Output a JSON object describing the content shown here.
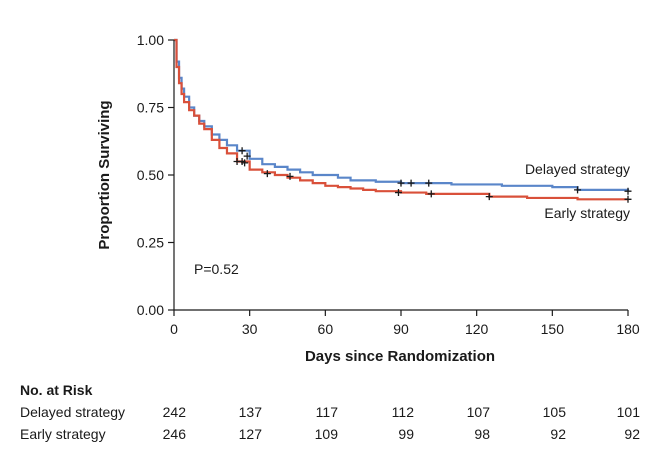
{
  "chart_data": {
    "type": "line",
    "subtype": "kaplan-meier",
    "xlabel": "Days since Randomization",
    "ylabel": "Proportion Surviving",
    "xlim": [
      0,
      180
    ],
    "ylim": [
      0,
      1
    ],
    "xticks": [
      0,
      30,
      60,
      90,
      120,
      150,
      180
    ],
    "yticks": [
      "0.00",
      "0.25",
      "0.50",
      "0.75",
      "1.00"
    ],
    "annotation": "P=0.52",
    "series": [
      {
        "name": "Delayed strategy",
        "color": "#5a86c9",
        "points": [
          [
            0,
            1.0
          ],
          [
            1,
            0.92
          ],
          [
            2,
            0.86
          ],
          [
            3,
            0.82
          ],
          [
            4,
            0.79
          ],
          [
            6,
            0.75
          ],
          [
            8,
            0.72
          ],
          [
            10,
            0.7
          ],
          [
            12,
            0.68
          ],
          [
            15,
            0.65
          ],
          [
            18,
            0.63
          ],
          [
            21,
            0.61
          ],
          [
            25,
            0.59
          ],
          [
            30,
            0.56
          ],
          [
            35,
            0.54
          ],
          [
            40,
            0.53
          ],
          [
            45,
            0.52
          ],
          [
            50,
            0.51
          ],
          [
            55,
            0.5
          ],
          [
            60,
            0.5
          ],
          [
            65,
            0.49
          ],
          [
            70,
            0.48
          ],
          [
            75,
            0.48
          ],
          [
            80,
            0.475
          ],
          [
            90,
            0.47
          ],
          [
            100,
            0.47
          ],
          [
            110,
            0.465
          ],
          [
            130,
            0.46
          ],
          [
            150,
            0.455
          ],
          [
            160,
            0.445
          ],
          [
            180,
            0.44
          ]
        ],
        "censored": [
          [
            27,
            0.59
          ],
          [
            29,
            0.57
          ],
          [
            90,
            0.47
          ],
          [
            94,
            0.47
          ],
          [
            101,
            0.47
          ],
          [
            160,
            0.445
          ],
          [
            180,
            0.44
          ]
        ]
      },
      {
        "name": "Early strategy",
        "color": "#d9503a",
        "points": [
          [
            0,
            1.0
          ],
          [
            1,
            0.9
          ],
          [
            2,
            0.84
          ],
          [
            3,
            0.8
          ],
          [
            4,
            0.77
          ],
          [
            6,
            0.74
          ],
          [
            8,
            0.72
          ],
          [
            10,
            0.69
          ],
          [
            12,
            0.67
          ],
          [
            15,
            0.63
          ],
          [
            18,
            0.6
          ],
          [
            21,
            0.58
          ],
          [
            25,
            0.55
          ],
          [
            30,
            0.52
          ],
          [
            35,
            0.51
          ],
          [
            40,
            0.5
          ],
          [
            45,
            0.49
          ],
          [
            50,
            0.48
          ],
          [
            55,
            0.47
          ],
          [
            60,
            0.46
          ],
          [
            65,
            0.455
          ],
          [
            70,
            0.45
          ],
          [
            75,
            0.445
          ],
          [
            80,
            0.44
          ],
          [
            90,
            0.435
          ],
          [
            100,
            0.43
          ],
          [
            120,
            0.43
          ],
          [
            125,
            0.42
          ],
          [
            140,
            0.415
          ],
          [
            160,
            0.41
          ],
          [
            180,
            0.41
          ]
        ],
        "censored": [
          [
            25,
            0.55
          ],
          [
            27,
            0.55
          ],
          [
            28,
            0.545
          ],
          [
            37,
            0.505
          ],
          [
            46,
            0.495
          ],
          [
            89,
            0.435
          ],
          [
            102,
            0.43
          ],
          [
            125,
            0.42
          ],
          [
            180,
            0.41
          ]
        ]
      }
    ]
  },
  "risk_table": {
    "title": "No. at Risk",
    "rows": [
      {
        "label": "Delayed strategy",
        "values": [
          "242",
          "137",
          "117",
          "112",
          "107",
          "105",
          "101"
        ]
      },
      {
        "label": "Early strategy",
        "values": [
          "246",
          "127",
          "109",
          "99",
          "98",
          "92",
          "92"
        ]
      }
    ]
  }
}
